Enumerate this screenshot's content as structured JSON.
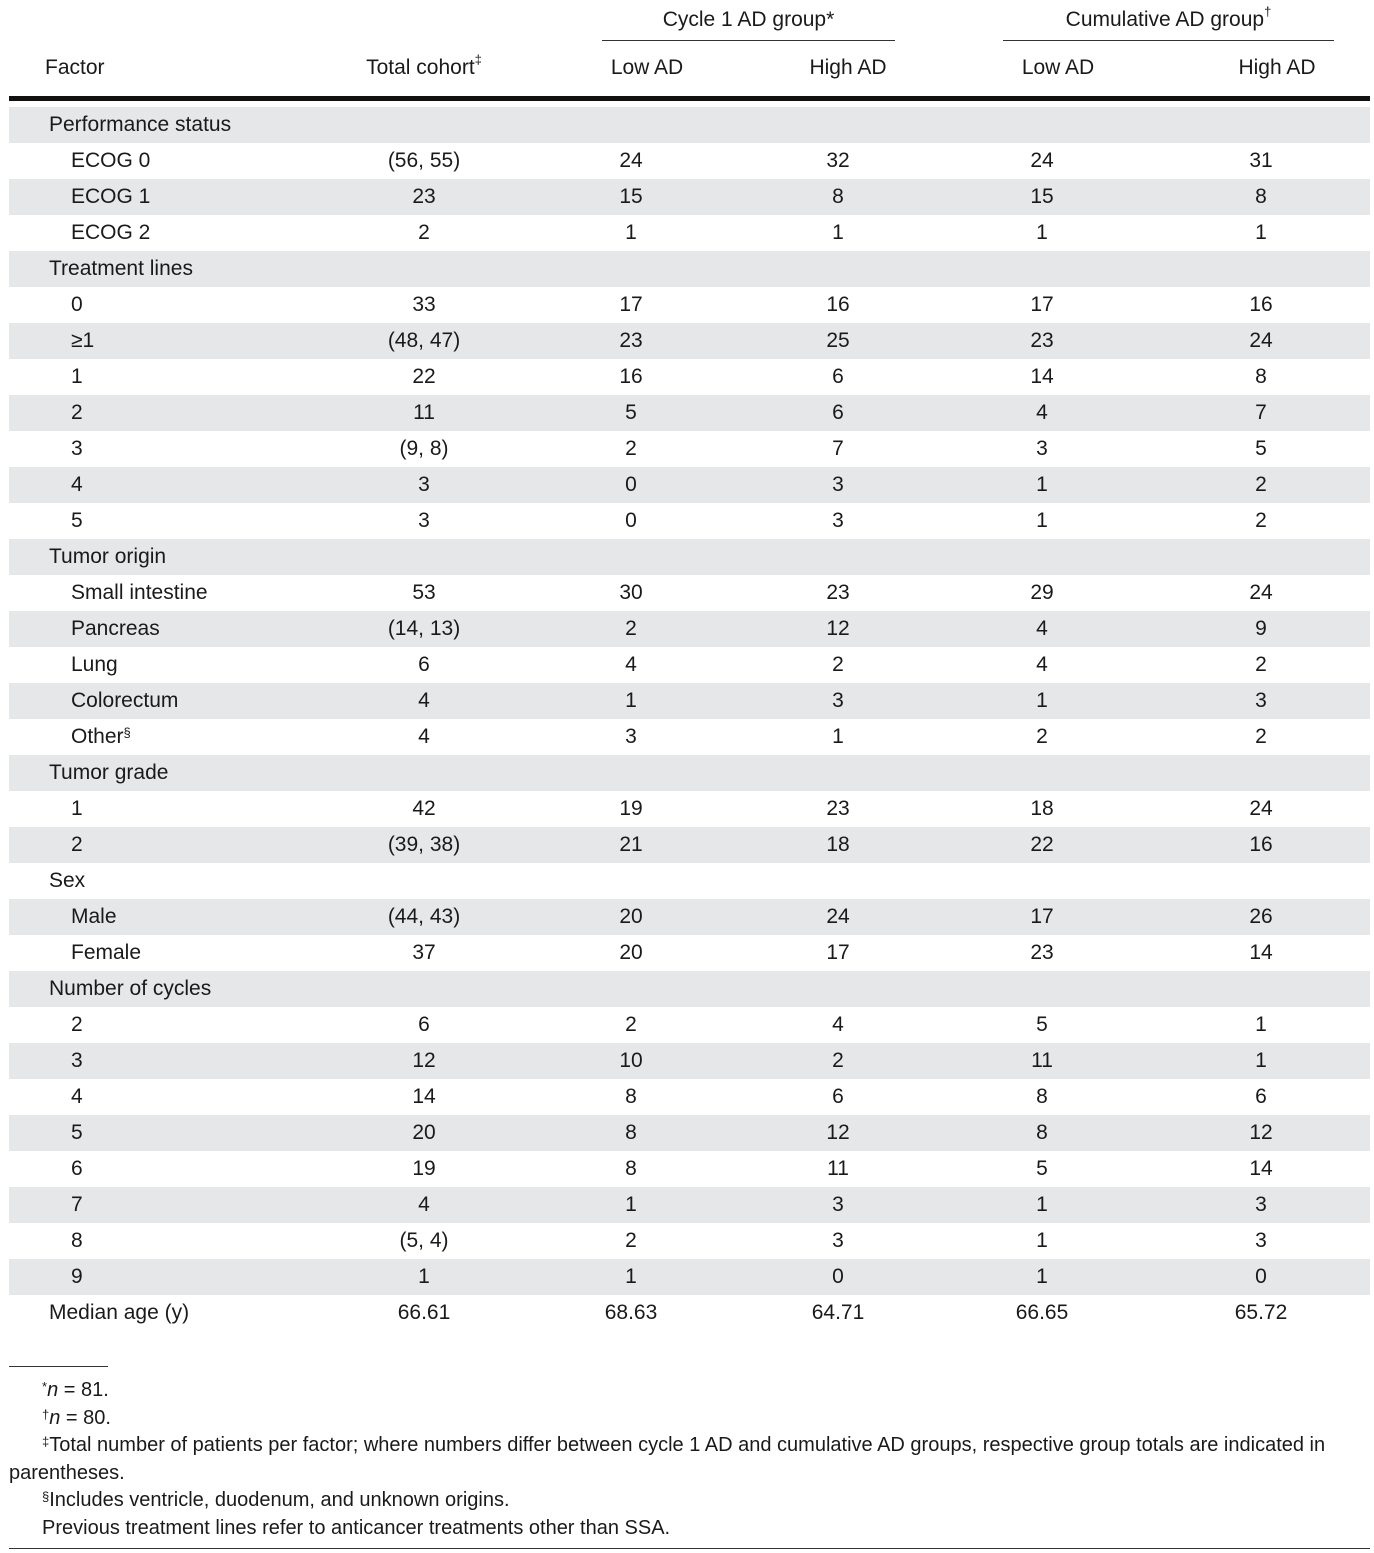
{
  "header": {
    "group1": {
      "label": "Cycle 1 AD group",
      "mark": "*"
    },
    "group2": {
      "label": "Cumulative AD group",
      "mark": "†"
    },
    "factor": "Factor",
    "total": "Total cohort",
    "total_mark": "‡",
    "low_ad_1": "Low AD",
    "high_ad_1": "High AD",
    "low_ad_2": "Low AD",
    "high_ad_2": "High AD"
  },
  "rows": [
    {
      "label": "Performance status",
      "level": 0,
      "shade": true,
      "values": [
        "",
        "",
        "",
        "",
        ""
      ]
    },
    {
      "label": "ECOG 0",
      "level": 1,
      "shade": false,
      "values": [
        "(56, 55)",
        "24",
        "32",
        "24",
        "31"
      ]
    },
    {
      "label": "ECOG 1",
      "level": 1,
      "shade": true,
      "values": [
        "23",
        "15",
        "8",
        "15",
        "8"
      ]
    },
    {
      "label": "ECOG 2",
      "level": 1,
      "shade": false,
      "values": [
        "2",
        "1",
        "1",
        "1",
        "1"
      ]
    },
    {
      "label": "Treatment lines",
      "level": 0,
      "shade": true,
      "values": [
        "",
        "",
        "",
        "",
        ""
      ]
    },
    {
      "label": "0",
      "level": 1,
      "shade": false,
      "values": [
        "33",
        "17",
        "16",
        "17",
        "16"
      ]
    },
    {
      "label": "≥1",
      "level": 1,
      "shade": true,
      "values": [
        "(48, 47)",
        "23",
        "25",
        "23",
        "24"
      ]
    },
    {
      "label": "1",
      "level": 1,
      "shade": false,
      "values": [
        "22",
        "16",
        "6",
        "14",
        "8"
      ]
    },
    {
      "label": "2",
      "level": 1,
      "shade": true,
      "values": [
        "11",
        "5",
        "6",
        "4",
        "7"
      ]
    },
    {
      "label": "3",
      "level": 1,
      "shade": false,
      "values": [
        "(9, 8)",
        "2",
        "7",
        "3",
        "5"
      ]
    },
    {
      "label": "4",
      "level": 1,
      "shade": true,
      "values": [
        "3",
        "0",
        "3",
        "1",
        "2"
      ]
    },
    {
      "label": "5",
      "level": 1,
      "shade": false,
      "values": [
        "3",
        "0",
        "3",
        "1",
        "2"
      ]
    },
    {
      "label": "Tumor origin",
      "level": 0,
      "shade": true,
      "values": [
        "",
        "",
        "",
        "",
        ""
      ]
    },
    {
      "label": "Small intestine",
      "level": 1,
      "shade": false,
      "values": [
        "53",
        "30",
        "23",
        "29",
        "24"
      ]
    },
    {
      "label": "Pancreas",
      "level": 1,
      "shade": true,
      "values": [
        "(14, 13)",
        "2",
        "12",
        "4",
        "9"
      ]
    },
    {
      "label": "Lung",
      "level": 1,
      "shade": false,
      "values": [
        "6",
        "4",
        "2",
        "4",
        "2"
      ]
    },
    {
      "label": "Colorectum",
      "level": 1,
      "shade": true,
      "values": [
        "4",
        "1",
        "3",
        "1",
        "3"
      ]
    },
    {
      "label": "Other",
      "mark": "§",
      "level": 1,
      "shade": false,
      "values": [
        "4",
        "3",
        "1",
        "2",
        "2"
      ]
    },
    {
      "label": "Tumor grade",
      "level": 0,
      "shade": true,
      "values": [
        "",
        "",
        "",
        "",
        ""
      ]
    },
    {
      "label": "1",
      "level": 1,
      "shade": false,
      "values": [
        "42",
        "19",
        "23",
        "18",
        "24"
      ]
    },
    {
      "label": "2",
      "level": 1,
      "shade": true,
      "values": [
        "(39, 38)",
        "21",
        "18",
        "22",
        "16"
      ]
    },
    {
      "label": "Sex",
      "level": 0,
      "shade": false,
      "values": [
        "",
        "",
        "",
        "",
        ""
      ]
    },
    {
      "label": "Male",
      "level": 1,
      "shade": true,
      "values": [
        "(44, 43)",
        "20",
        "24",
        "17",
        "26"
      ]
    },
    {
      "label": "Female",
      "level": 1,
      "shade": false,
      "values": [
        "37",
        "20",
        "17",
        "23",
        "14"
      ]
    },
    {
      "label": "Number of cycles",
      "level": 0,
      "shade": true,
      "values": [
        "",
        "",
        "",
        "",
        ""
      ]
    },
    {
      "label": "2",
      "level": 1,
      "shade": false,
      "values": [
        "6",
        "2",
        "4",
        "5",
        "1"
      ]
    },
    {
      "label": "3",
      "level": 1,
      "shade": true,
      "values": [
        "12",
        "10",
        "2",
        "11",
        "1"
      ]
    },
    {
      "label": "4",
      "level": 1,
      "shade": false,
      "values": [
        "14",
        "8",
        "6",
        "8",
        "6"
      ]
    },
    {
      "label": "5",
      "level": 1,
      "shade": true,
      "values": [
        "20",
        "8",
        "12",
        "8",
        "12"
      ]
    },
    {
      "label": "6",
      "level": 1,
      "shade": false,
      "values": [
        "19",
        "8",
        "11",
        "5",
        "14"
      ]
    },
    {
      "label": "7",
      "level": 1,
      "shade": true,
      "values": [
        "4",
        "1",
        "3",
        "1",
        "3"
      ]
    },
    {
      "label": "8",
      "level": 1,
      "shade": false,
      "values": [
        "(5, 4)",
        "2",
        "3",
        "1",
        "3"
      ]
    },
    {
      "label": "9",
      "level": 1,
      "shade": true,
      "values": [
        "1",
        "1",
        "0",
        "1",
        "0"
      ]
    },
    {
      "label": "Median age (y)",
      "level": 0,
      "shade": false,
      "values": [
        "66.61",
        "68.63",
        "64.71",
        "66.65",
        "65.72"
      ]
    }
  ],
  "footnotes": {
    "n1_mark": "*",
    "n1_var": "n",
    "n1_text": " = 81.",
    "n2_mark": "†",
    "n2_var": "n",
    "n2_text": " = 80.",
    "n3_mark": "‡",
    "n3_text": "Total number of patients per factor; where numbers differ between cycle 1 AD and cumulative AD groups, respective group totals are indicated in parentheses.",
    "n4_mark": "§",
    "n4_text": "Includes ventricle, duodenum, and unknown origins.",
    "n5_text": "Previous treatment lines refer to anticancer treatments other than SSA."
  }
}
